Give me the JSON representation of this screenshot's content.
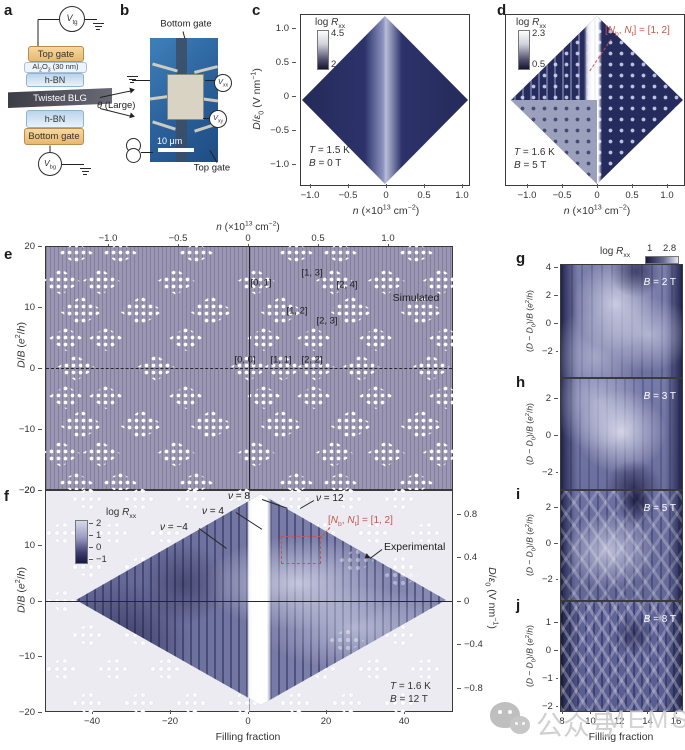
{
  "panel_a": {
    "label": "a",
    "vtg": "<i>V</i><sub>tg</sub>",
    "vbg": "<i>V</i><sub>bg</sub>",
    "layer_top_gate": "Top gate",
    "layer_al2o3": "Al<sub>2</sub>O<sub>3</sub> (30 nm)",
    "layer_hbn_top": "h-BN",
    "layer_tblg": "Twisted BLG",
    "layer_hbn_bottom": "h-BN",
    "layer_bottom_gate": "Bottom gate",
    "theta": "<i>θ</i> (Large)"
  },
  "panel_b": {
    "label": "b",
    "bottom_gate": "Bottom gate",
    "top_gate": "Top gate",
    "vxx": "<i>V</i><sub>xx</sub>",
    "vxy": "<i>V</i><sub>xy</sub>",
    "scalebar": "10 μm"
  },
  "panel_c": {
    "label": "c",
    "cbar_title": "log <i>R</i><sub>xx</sub>",
    "cbar_max": "4.5",
    "cbar_min": "2",
    "ylabel": "<i>D</i>/<i>ε</i><sub>0</sub> (V nm<sup>−1</sup>)",
    "yticks": [
      "1.0",
      "0.5",
      "0",
      "−0.5",
      "−1.0"
    ],
    "xticks": [
      "−1.0",
      "−0.5",
      "0",
      "0.5",
      "1.0"
    ],
    "xlabel": "<i>n</i> (×10<sup>13</sup> cm<sup>−2</sup>)",
    "cond1": "<i>T</i> = 1.5 K",
    "cond2": "<i>B</i> = 0 T"
  },
  "panel_d": {
    "label": "d",
    "cbar_title": "log <i>R</i><sub>xx</sub>",
    "cbar_max": "2.3",
    "cbar_min": "0.5",
    "annotation": "[<i>N</i><sub>b</sub>, <i>N</i><sub>t</sub>] = [1, 2]",
    "xticks": [
      "−1.0",
      "−0.5",
      "0",
      "0.5",
      "1.0"
    ],
    "xlabel": "<i>n</i> (×10<sup>13</sup> cm<sup>−2</sup>)",
    "cond1": "<i>T</i> = 1.6 K",
    "cond2": "<i>B</i> = 5 T"
  },
  "panel_e": {
    "label": "e",
    "top_xlabel": "<i>n</i> (×10<sup>13</sup> cm<sup>−2</sup>)",
    "top_xticks": [
      "−1.0",
      "−0.5",
      "0",
      "0.5",
      "1.0"
    ],
    "ylabel": "<i>D</i>/<i>B</i> (<i>e</i><sup>2</sup>/<i>h</i>)",
    "yticks": [
      "20",
      "10",
      "0",
      "−10",
      "−20"
    ],
    "tag": "Simulated",
    "cl_13": "[1, 3]",
    "cl_01": "[0, 1]",
    "cl_24": "[2, 4]",
    "cl_12": "[1, 2]",
    "cl_23": "[2, 3]",
    "cl_00": "[0, 0]",
    "cl_11": "[1, 1]",
    "cl_22": "[2, 2]"
  },
  "panel_f": {
    "label": "f",
    "cbar_title": "log <i>R</i><sub>xx</sub>",
    "cbar_ticks": [
      "2",
      "1",
      "0",
      "−1"
    ],
    "ylabel": "<i>D</i>/<i>B</i> (<i>e</i><sup>2</sup>/<i>h</i>)",
    "yticks": [
      "20",
      "10",
      "0",
      "−10",
      "−20"
    ],
    "right_ylabel": "<i>D</i>/<i>ε</i><sub>0</sub> (V nm<sup>−1</sup>)",
    "right_yticks": [
      "0.8",
      "0.4",
      "0",
      "−0.4",
      "−0.8"
    ],
    "xticks": [
      "−40",
      "−20",
      "0",
      "20",
      "40"
    ],
    "xlabel": "Filling fraction",
    "nu8": "<i>ν</i> = 8",
    "nu12": "<i>ν</i> = 12",
    "nu4": "<i>ν</i> = 4",
    "num4": "<i>ν</i> = −4",
    "annotation": "[<i>N</i><sub>b</sub>, <i>N</i><sub>t</sub>] = [1, 2]",
    "tag": "Experimental",
    "cond1": "<i>T</i> = 1.6 K",
    "cond2": "<i>B</i> = 12 T"
  },
  "panel_g": {
    "label": "g",
    "cbar_title": "log <i>R</i><sub>xx</sub>",
    "cbar_min": "1",
    "cbar_max": "2.8",
    "field": "<i>B</i> = 2 T",
    "ylabel": "(<i>D</i> − <i>D</i><sub>0</sub>)/<i>B</i> (<i>e</i><sup>2</sup>/<i>h</i>)",
    "yticks": [
      "4",
      "2",
      "0",
      "−2"
    ]
  },
  "panel_h": {
    "label": "h",
    "field": "<i>B</i> = 3 T",
    "ylabel": "(<i>D</i> − <i>D</i><sub>0</sub>)/<i>B</i> (<i>e</i><sup>2</sup>/<i>h</i>)",
    "yticks": [
      "2",
      "0",
      "−2"
    ]
  },
  "panel_i": {
    "label": "i",
    "field": "<i>B</i> = 5 T",
    "ylabel": "(<i>D</i> − <i>D</i><sub>0</sub>)/<i>B</i> (<i>e</i><sup>2</sup>/<i>h</i>)",
    "yticks": [
      "2",
      "0",
      "−2"
    ]
  },
  "panel_j": {
    "label": "j",
    "field": "<i>B</i> = 8 T",
    "ylabel": "(<i>D</i> − <i>D</i><sub>0</sub>)/<i>B</i> (<i>e</i><sup>2</sup>/<i>h</i>)",
    "yticks": [
      "1",
      "0",
      "−1",
      "−2"
    ],
    "xticks": [
      "8",
      "10",
      "12",
      "14",
      "16"
    ],
    "xlabel": "Filling fraction"
  },
  "watermark": {
    "text1": "公众号",
    "text2": "MEMS"
  }
}
